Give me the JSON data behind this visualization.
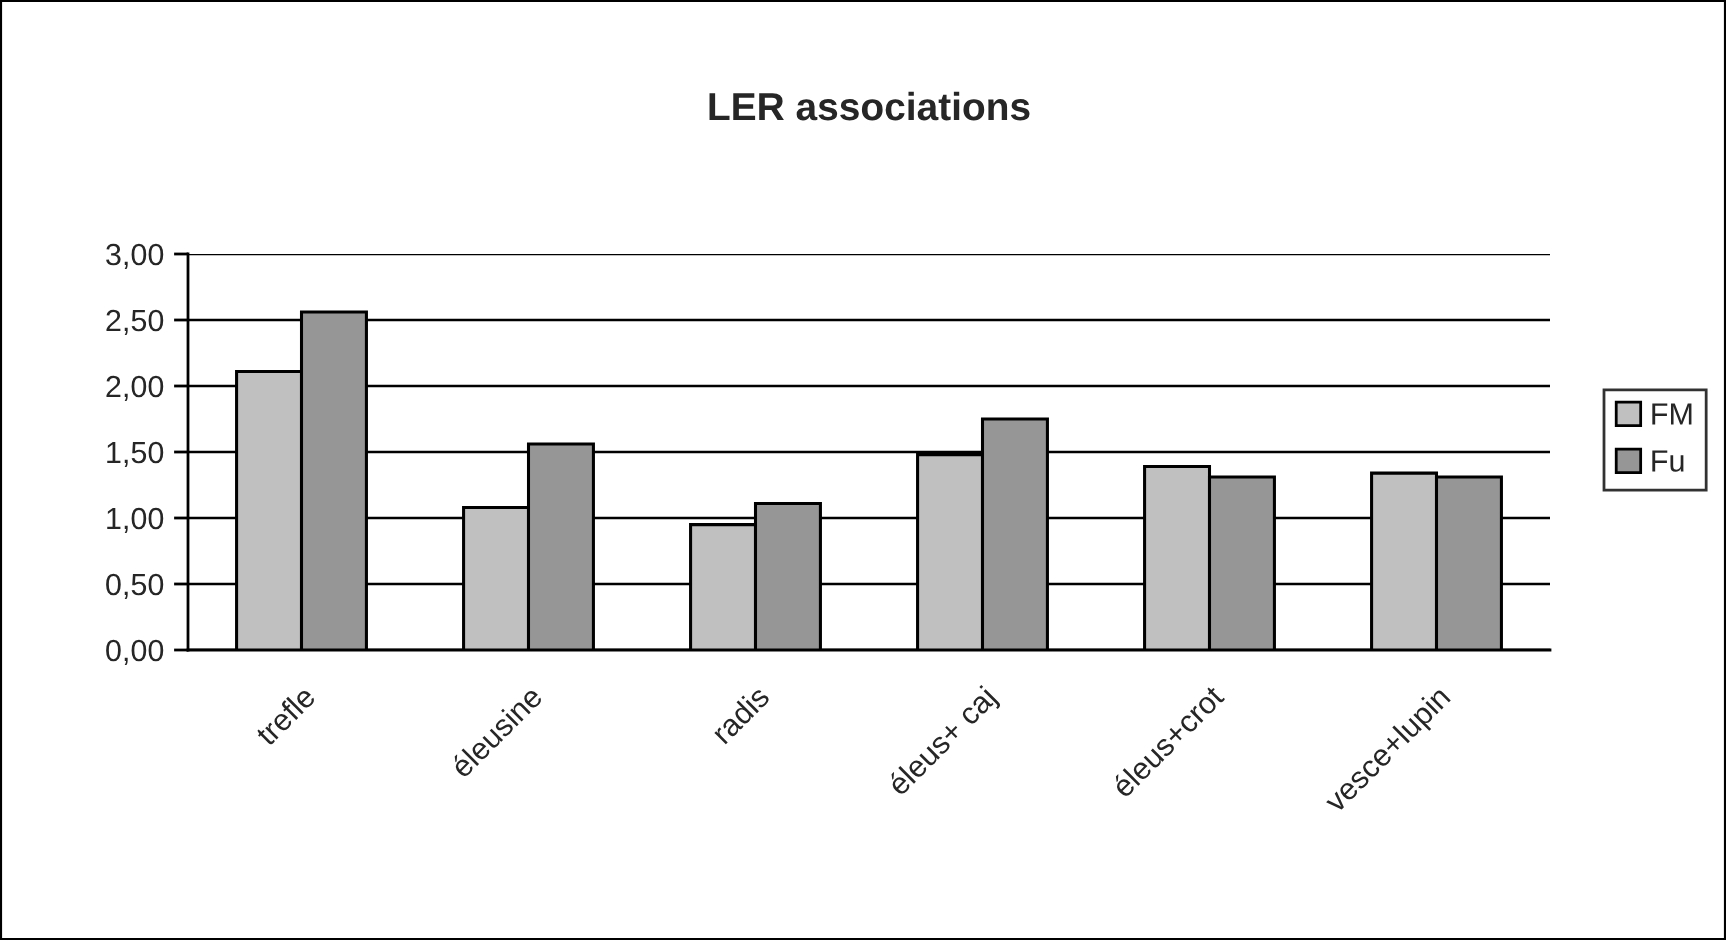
{
  "chart_data": {
    "type": "bar",
    "title": "LER associations",
    "categories": [
      "trefle",
      "éleusine",
      "radis",
      "éleus+ caj",
      "éleus+crot",
      "vesce+lupin"
    ],
    "series": [
      {
        "name": "FM",
        "color": "#c0c0c0",
        "values": [
          2.11,
          1.08,
          0.95,
          1.48,
          1.39,
          1.34
        ]
      },
      {
        "name": "Fu",
        "color": "#969696",
        "values": [
          2.56,
          1.56,
          1.11,
          1.75,
          1.31,
          1.31
        ]
      }
    ],
    "ylim": [
      0,
      3
    ],
    "yticks": [
      {
        "value": 0,
        "label": "0,00"
      },
      {
        "value": 0.5,
        "label": "0,50"
      },
      {
        "value": 1,
        "label": "1,00"
      },
      {
        "value": 1.5,
        "label": "1,50"
      },
      {
        "value": 2,
        "label": "2,00"
      },
      {
        "value": 2.5,
        "label": "2,50"
      },
      {
        "value": 3,
        "label": "3,00"
      }
    ],
    "grid": "y",
    "legend": "right"
  }
}
